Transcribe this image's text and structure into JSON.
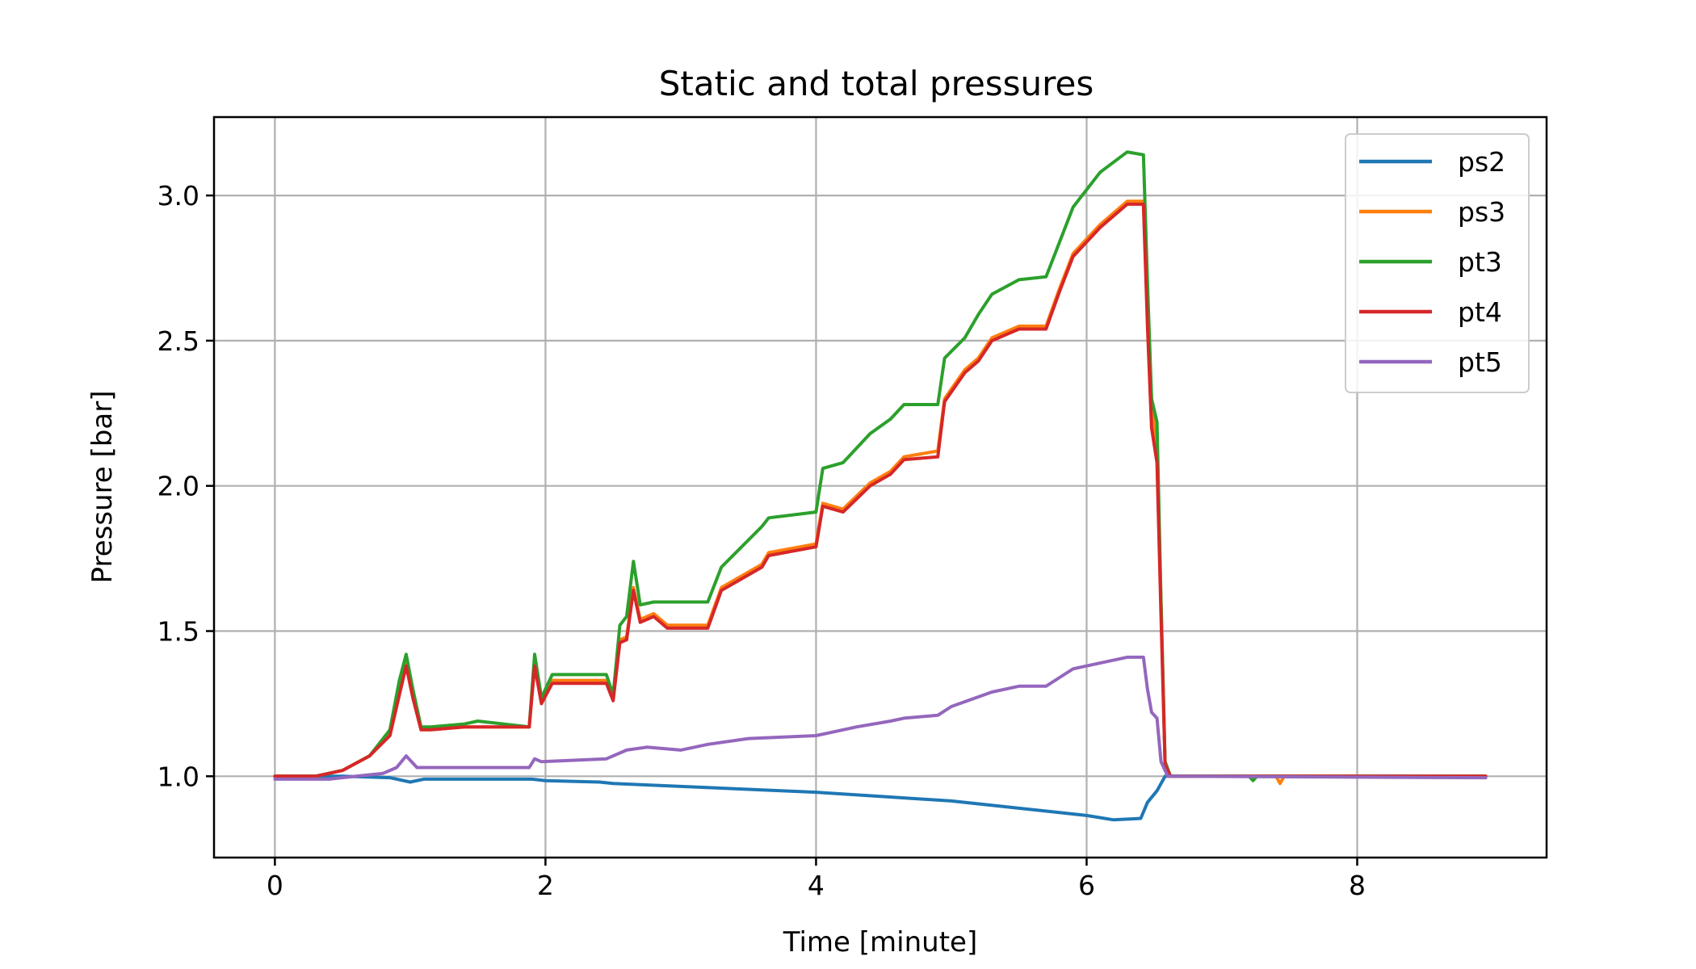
{
  "chart_data": {
    "type": "line",
    "title": "Static and total pressures",
    "xlabel": "Time [minute]",
    "ylabel": "Pressure [bar]",
    "xlim": [
      -0.45,
      9.4
    ],
    "ylim": [
      0.72,
      3.27
    ],
    "xticks": [
      0,
      2,
      4,
      6,
      8
    ],
    "yticks": [
      1.0,
      1.5,
      2.0,
      2.5,
      3.0
    ],
    "xtick_labels": [
      "0",
      "2",
      "4",
      "6",
      "8"
    ],
    "ytick_labels": [
      "1.0",
      "1.5",
      "2.0",
      "2.5",
      "3.0"
    ],
    "grid": true,
    "legend_position": "top-right",
    "series": [
      {
        "name": "ps2",
        "color": "#1f77b4",
        "points": [
          [
            0,
            1.0
          ],
          [
            0.5,
            1.0
          ],
          [
            0.85,
            0.995
          ],
          [
            1.0,
            0.98
          ],
          [
            1.1,
            0.99
          ],
          [
            1.9,
            0.99
          ],
          [
            2.0,
            0.985
          ],
          [
            2.4,
            0.98
          ],
          [
            2.5,
            0.975
          ],
          [
            3.0,
            0.965
          ],
          [
            3.5,
            0.955
          ],
          [
            4.0,
            0.945
          ],
          [
            4.5,
            0.93
          ],
          [
            5.0,
            0.915
          ],
          [
            5.5,
            0.89
          ],
          [
            6.0,
            0.865
          ],
          [
            6.2,
            0.85
          ],
          [
            6.4,
            0.855
          ],
          [
            6.45,
            0.91
          ],
          [
            6.52,
            0.95
          ],
          [
            6.58,
            1.0
          ],
          [
            7.0,
            1.0
          ],
          [
            8.0,
            1.0
          ],
          [
            8.95,
            1.0
          ]
        ]
      },
      {
        "name": "ps3",
        "color": "#ff7f0e",
        "points": [
          [
            0,
            1.0
          ],
          [
            0.3,
            1.0
          ],
          [
            0.5,
            1.02
          ],
          [
            0.7,
            1.07
          ],
          [
            0.85,
            1.15
          ],
          [
            0.92,
            1.3
          ],
          [
            0.97,
            1.39
          ],
          [
            1.02,
            1.28
          ],
          [
            1.08,
            1.17
          ],
          [
            1.15,
            1.16
          ],
          [
            1.4,
            1.17
          ],
          [
            1.88,
            1.17
          ],
          [
            1.92,
            1.39
          ],
          [
            1.97,
            1.26
          ],
          [
            2.05,
            1.33
          ],
          [
            2.45,
            1.33
          ],
          [
            2.5,
            1.27
          ],
          [
            2.55,
            1.47
          ],
          [
            2.6,
            1.48
          ],
          [
            2.65,
            1.65
          ],
          [
            2.7,
            1.54
          ],
          [
            2.8,
            1.56
          ],
          [
            2.9,
            1.52
          ],
          [
            3.2,
            1.52
          ],
          [
            3.3,
            1.65
          ],
          [
            3.6,
            1.73
          ],
          [
            3.65,
            1.77
          ],
          [
            4.0,
            1.8
          ],
          [
            4.05,
            1.94
          ],
          [
            4.2,
            1.92
          ],
          [
            4.4,
            2.01
          ],
          [
            4.55,
            2.05
          ],
          [
            4.65,
            2.1
          ],
          [
            4.9,
            2.12
          ],
          [
            4.95,
            2.3
          ],
          [
            5.1,
            2.4
          ],
          [
            5.2,
            2.44
          ],
          [
            5.3,
            2.51
          ],
          [
            5.5,
            2.55
          ],
          [
            5.7,
            2.55
          ],
          [
            5.8,
            2.68
          ],
          [
            5.9,
            2.8
          ],
          [
            6.1,
            2.9
          ],
          [
            6.3,
            2.98
          ],
          [
            6.42,
            2.98
          ],
          [
            6.45,
            2.6
          ],
          [
            6.48,
            2.3
          ],
          [
            6.52,
            2.1
          ],
          [
            6.55,
            1.6
          ],
          [
            6.58,
            1.05
          ],
          [
            6.62,
            1.0
          ],
          [
            7.4,
            1.0
          ],
          [
            7.43,
            0.975
          ],
          [
            7.46,
            1.0
          ],
          [
            8.95,
            1.0
          ]
        ]
      },
      {
        "name": "pt3",
        "color": "#2ca02c",
        "points": [
          [
            0,
            1.0
          ],
          [
            0.3,
            1.0
          ],
          [
            0.5,
            1.02
          ],
          [
            0.7,
            1.07
          ],
          [
            0.85,
            1.16
          ],
          [
            0.92,
            1.33
          ],
          [
            0.97,
            1.42
          ],
          [
            1.02,
            1.3
          ],
          [
            1.08,
            1.17
          ],
          [
            1.15,
            1.17
          ],
          [
            1.4,
            1.18
          ],
          [
            1.5,
            1.19
          ],
          [
            1.88,
            1.17
          ],
          [
            1.92,
            1.42
          ],
          [
            1.97,
            1.27
          ],
          [
            2.05,
            1.35
          ],
          [
            2.45,
            1.35
          ],
          [
            2.5,
            1.28
          ],
          [
            2.55,
            1.52
          ],
          [
            2.6,
            1.55
          ],
          [
            2.65,
            1.74
          ],
          [
            2.7,
            1.59
          ],
          [
            2.8,
            1.6
          ],
          [
            2.9,
            1.6
          ],
          [
            3.2,
            1.6
          ],
          [
            3.3,
            1.72
          ],
          [
            3.6,
            1.86
          ],
          [
            3.65,
            1.89
          ],
          [
            4.0,
            1.91
          ],
          [
            4.05,
            2.06
          ],
          [
            4.2,
            2.08
          ],
          [
            4.4,
            2.18
          ],
          [
            4.55,
            2.23
          ],
          [
            4.65,
            2.28
          ],
          [
            4.9,
            2.28
          ],
          [
            4.95,
            2.44
          ],
          [
            5.1,
            2.51
          ],
          [
            5.2,
            2.59
          ],
          [
            5.3,
            2.66
          ],
          [
            5.5,
            2.71
          ],
          [
            5.7,
            2.72
          ],
          [
            5.8,
            2.84
          ],
          [
            5.9,
            2.96
          ],
          [
            6.1,
            3.08
          ],
          [
            6.3,
            3.15
          ],
          [
            6.42,
            3.14
          ],
          [
            6.45,
            2.7
          ],
          [
            6.48,
            2.3
          ],
          [
            6.52,
            2.22
          ],
          [
            6.55,
            1.6
          ],
          [
            6.58,
            1.05
          ],
          [
            6.62,
            1.0
          ],
          [
            7.2,
            1.0
          ],
          [
            7.23,
            0.985
          ],
          [
            7.26,
            1.0
          ],
          [
            8.95,
            1.0
          ]
        ]
      },
      {
        "name": "pt4",
        "color": "#d62728",
        "points": [
          [
            0,
            1.0
          ],
          [
            0.3,
            1.0
          ],
          [
            0.5,
            1.02
          ],
          [
            0.7,
            1.07
          ],
          [
            0.85,
            1.14
          ],
          [
            0.92,
            1.28
          ],
          [
            0.97,
            1.38
          ],
          [
            1.02,
            1.27
          ],
          [
            1.08,
            1.16
          ],
          [
            1.15,
            1.16
          ],
          [
            1.4,
            1.17
          ],
          [
            1.88,
            1.17
          ],
          [
            1.92,
            1.38
          ],
          [
            1.97,
            1.25
          ],
          [
            2.05,
            1.32
          ],
          [
            2.45,
            1.32
          ],
          [
            2.5,
            1.26
          ],
          [
            2.55,
            1.46
          ],
          [
            2.6,
            1.47
          ],
          [
            2.65,
            1.64
          ],
          [
            2.7,
            1.53
          ],
          [
            2.8,
            1.55
          ],
          [
            2.9,
            1.51
          ],
          [
            3.2,
            1.51
          ],
          [
            3.3,
            1.64
          ],
          [
            3.6,
            1.72
          ],
          [
            3.65,
            1.76
          ],
          [
            4.0,
            1.79
          ],
          [
            4.05,
            1.93
          ],
          [
            4.2,
            1.91
          ],
          [
            4.4,
            2.0
          ],
          [
            4.55,
            2.04
          ],
          [
            4.65,
            2.09
          ],
          [
            4.9,
            2.1
          ],
          [
            4.95,
            2.29
          ],
          [
            5.1,
            2.39
          ],
          [
            5.2,
            2.43
          ],
          [
            5.3,
            2.5
          ],
          [
            5.5,
            2.54
          ],
          [
            5.7,
            2.54
          ],
          [
            5.8,
            2.67
          ],
          [
            5.9,
            2.79
          ],
          [
            6.1,
            2.89
          ],
          [
            6.3,
            2.97
          ],
          [
            6.42,
            2.97
          ],
          [
            6.45,
            2.55
          ],
          [
            6.48,
            2.2
          ],
          [
            6.52,
            2.08
          ],
          [
            6.55,
            1.55
          ],
          [
            6.58,
            1.04
          ],
          [
            6.62,
            1.0
          ],
          [
            8.95,
            1.0
          ]
        ]
      },
      {
        "name": "pt5",
        "color": "#9467bd",
        "points": [
          [
            0,
            0.99
          ],
          [
            0.4,
            0.99
          ],
          [
            0.6,
            1.0
          ],
          [
            0.8,
            1.01
          ],
          [
            0.9,
            1.03
          ],
          [
            0.97,
            1.07
          ],
          [
            1.05,
            1.03
          ],
          [
            1.2,
            1.03
          ],
          [
            1.5,
            1.03
          ],
          [
            1.88,
            1.03
          ],
          [
            1.92,
            1.06
          ],
          [
            1.97,
            1.05
          ],
          [
            2.45,
            1.06
          ],
          [
            2.55,
            1.08
          ],
          [
            2.6,
            1.09
          ],
          [
            2.75,
            1.1
          ],
          [
            3.0,
            1.09
          ],
          [
            3.2,
            1.11
          ],
          [
            3.5,
            1.13
          ],
          [
            4.0,
            1.14
          ],
          [
            4.3,
            1.17
          ],
          [
            4.55,
            1.19
          ],
          [
            4.65,
            1.2
          ],
          [
            4.9,
            1.21
          ],
          [
            5.0,
            1.24
          ],
          [
            5.3,
            1.29
          ],
          [
            5.5,
            1.31
          ],
          [
            5.7,
            1.31
          ],
          [
            5.8,
            1.34
          ],
          [
            5.9,
            1.37
          ],
          [
            6.1,
            1.39
          ],
          [
            6.3,
            1.41
          ],
          [
            6.42,
            1.41
          ],
          [
            6.45,
            1.3
          ],
          [
            6.48,
            1.22
          ],
          [
            6.52,
            1.2
          ],
          [
            6.55,
            1.05
          ],
          [
            6.6,
            1.0
          ],
          [
            8.95,
            0.995
          ]
        ]
      }
    ]
  }
}
